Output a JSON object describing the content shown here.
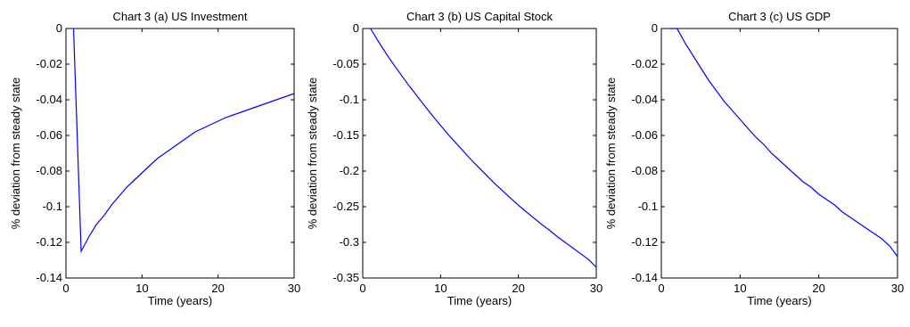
{
  "chart_data": [
    {
      "type": "line",
      "title": "Chart 3 (a) US Investment",
      "xlabel": "Time (years)",
      "ylabel": "% deviation from steady state",
      "xlim": [
        0,
        30
      ],
      "ylim": [
        -0.14,
        0
      ],
      "xticks": [
        "0",
        "10",
        "20",
        "30"
      ],
      "xtick_values": [
        0,
        10,
        20,
        30
      ],
      "yticks": [
        "0",
        "-0.02",
        "-0.04",
        "-0.06",
        "-0.08",
        "-0.1",
        "-0.12",
        "-0.14"
      ],
      "ytick_values": [
        0,
        -0.02,
        -0.04,
        -0.06,
        -0.08,
        -0.1,
        -0.12,
        -0.14
      ],
      "grid": false,
      "line_color": "#0000ff",
      "x": [
        1,
        2,
        3,
        4,
        5,
        6,
        7,
        8,
        9,
        10,
        11,
        12,
        13,
        14,
        15,
        16,
        17,
        18,
        19,
        20,
        21,
        22,
        23,
        24,
        25,
        26,
        27,
        28,
        29,
        30
      ],
      "y": [
        0,
        -0.125,
        -0.117,
        -0.11,
        -0.105,
        -0.099,
        -0.094,
        -0.089,
        -0.085,
        -0.081,
        -0.077,
        -0.073,
        -0.07,
        -0.067,
        -0.064,
        -0.061,
        -0.058,
        -0.056,
        -0.054,
        -0.052,
        -0.05,
        -0.0485,
        -0.047,
        -0.0455,
        -0.044,
        -0.0425,
        -0.041,
        -0.0395,
        -0.038,
        -0.0365
      ]
    },
    {
      "type": "line",
      "title": "Chart 3 (b) US Capital Stock",
      "xlabel": "Time (years)",
      "ylabel": "% deviation from steady state",
      "xlim": [
        0,
        30
      ],
      "ylim": [
        -0.35,
        0
      ],
      "xticks": [
        "0",
        "10",
        "20",
        "30"
      ],
      "xtick_values": [
        0,
        10,
        20,
        30
      ],
      "yticks": [
        "0",
        "-0.05",
        "-0.1",
        "-0.15",
        "-0.2",
        "-0.25",
        "-0.3",
        "-0.35"
      ],
      "ytick_values": [
        0,
        -0.05,
        -0.1,
        -0.15,
        -0.2,
        -0.25,
        -0.3,
        -0.35
      ],
      "grid": false,
      "line_color": "#0000ff",
      "x": [
        1,
        2,
        3,
        4,
        5,
        6,
        7,
        8,
        9,
        10,
        11,
        12,
        13,
        14,
        15,
        16,
        17,
        18,
        19,
        20,
        21,
        22,
        23,
        24,
        25,
        26,
        27,
        28,
        29,
        30
      ],
      "y": [
        0,
        -0.018,
        -0.035,
        -0.051,
        -0.066,
        -0.081,
        -0.095,
        -0.109,
        -0.123,
        -0.136,
        -0.149,
        -0.161,
        -0.173,
        -0.185,
        -0.196,
        -0.207,
        -0.218,
        -0.228,
        -0.238,
        -0.248,
        -0.257,
        -0.266,
        -0.275,
        -0.283,
        -0.292,
        -0.3,
        -0.308,
        -0.316,
        -0.324,
        -0.335
      ]
    },
    {
      "type": "line",
      "title": "Chart 3 (c) US GDP",
      "xlabel": "Time (years)",
      "ylabel": "% deviation from steady state",
      "xlim": [
        0,
        30
      ],
      "ylim": [
        -0.14,
        0
      ],
      "xticks": [
        "0",
        "10",
        "20",
        "30"
      ],
      "xtick_values": [
        0,
        10,
        20,
        30
      ],
      "yticks": [
        "0",
        "-0.02",
        "-0.04",
        "-0.06",
        "-0.08",
        "-0.1",
        "-0.12",
        "-0.14"
      ],
      "ytick_values": [
        0,
        -0.02,
        -0.04,
        -0.06,
        -0.08,
        -0.1,
        -0.12,
        -0.14
      ],
      "grid": false,
      "line_color": "#0000ff",
      "x": [
        1,
        2,
        3,
        4,
        5,
        6,
        7,
        8,
        9,
        10,
        11,
        12,
        13,
        14,
        15,
        16,
        17,
        18,
        19,
        20,
        21,
        22,
        23,
        24,
        25,
        26,
        27,
        28,
        29,
        30
      ],
      "y": [
        0,
        0,
        -0.008,
        -0.015,
        -0.022,
        -0.029,
        -0.035,
        -0.041,
        -0.046,
        -0.051,
        -0.056,
        -0.061,
        -0.065,
        -0.07,
        -0.074,
        -0.078,
        -0.082,
        -0.086,
        -0.089,
        -0.093,
        -0.096,
        -0.099,
        -0.103,
        -0.106,
        -0.109,
        -0.112,
        -0.115,
        -0.118,
        -0.122,
        -0.128
      ]
    }
  ]
}
